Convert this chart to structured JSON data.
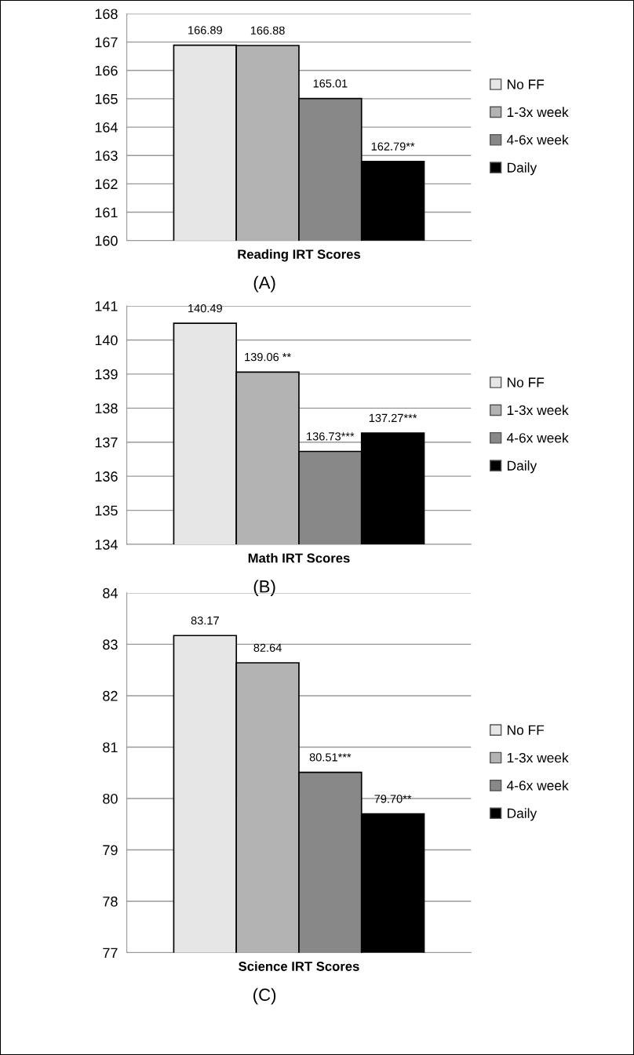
{
  "chart_data": [
    {
      "type": "bar",
      "categories": [
        "Reading IRT Scores"
      ],
      "annotations": [
        "(A)"
      ],
      "ylim": [
        160,
        168
      ],
      "yticks": [
        160,
        161,
        162,
        163,
        164,
        165,
        166,
        167,
        168
      ],
      "grid": "y",
      "legend": "right",
      "series": [
        {
          "name": "No FF",
          "color": "#e6e6e6",
          "values": [
            166.89
          ],
          "value_labels": [
            "166.89"
          ]
        },
        {
          "name": "1-3x week",
          "color": "#b3b3b3",
          "values": [
            166.88
          ],
          "value_labels": [
            "166.88"
          ]
        },
        {
          "name": "4-6x week",
          "color": "#888888",
          "values": [
            165.01
          ],
          "value_labels": [
            "165.01"
          ]
        },
        {
          "name": "Daily",
          "color": "#000000",
          "values": [
            162.79
          ],
          "value_labels": [
            "162.79**"
          ]
        }
      ]
    },
    {
      "type": "bar",
      "categories": [
        "Math IRT Scores"
      ],
      "annotations": [
        "(B)"
      ],
      "ylim": [
        134,
        141
      ],
      "yticks": [
        134,
        135,
        136,
        137,
        138,
        139,
        140,
        141
      ],
      "grid": "y",
      "legend": "right",
      "series": [
        {
          "name": "No FF",
          "color": "#e6e6e6",
          "values": [
            140.49
          ],
          "value_labels": [
            "140.49"
          ]
        },
        {
          "name": "1-3x week",
          "color": "#b3b3b3",
          "values": [
            139.06
          ],
          "value_labels": [
            "139.06 **"
          ]
        },
        {
          "name": "4-6x week",
          "color": "#888888",
          "values": [
            136.73
          ],
          "value_labels": [
            "136.73***"
          ]
        },
        {
          "name": "Daily",
          "color": "#000000",
          "values": [
            137.27
          ],
          "value_labels": [
            "137.27***"
          ]
        }
      ]
    },
    {
      "type": "bar",
      "categories": [
        "Science IRT Scores"
      ],
      "annotations": [
        "(C)"
      ],
      "ylim": [
        77,
        84
      ],
      "yticks": [
        77,
        78,
        79,
        80,
        81,
        82,
        83,
        84
      ],
      "grid": "y",
      "legend": "right",
      "series": [
        {
          "name": "No FF",
          "color": "#e6e6e6",
          "values": [
            83.17
          ],
          "value_labels": [
            "83.17"
          ]
        },
        {
          "name": "1-3x week",
          "color": "#b3b3b3",
          "values": [
            82.64
          ],
          "value_labels": [
            "82.64"
          ]
        },
        {
          "name": "4-6x week",
          "color": "#888888",
          "values": [
            80.51
          ],
          "value_labels": [
            "80.51***"
          ]
        },
        {
          "name": "Daily",
          "color": "#000000",
          "values": [
            79.7
          ],
          "value_labels": [
            "79.70**"
          ]
        }
      ]
    }
  ]
}
